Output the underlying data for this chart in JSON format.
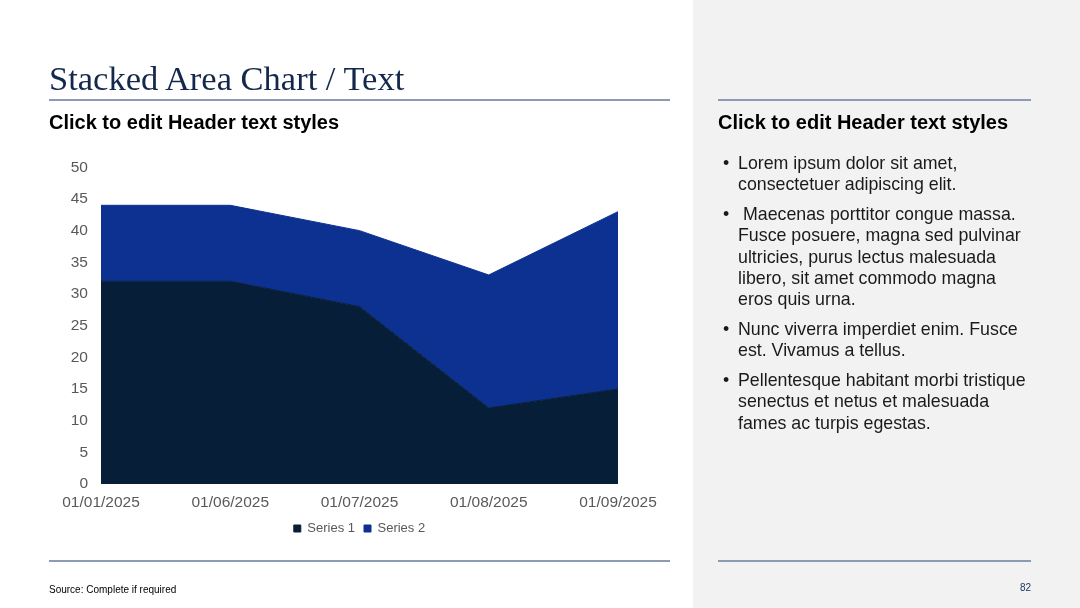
{
  "chart_data": [
    {
      "type": "area",
      "title": "Stacked Area Chart / Text",
      "subtitle": "Click to edit Header text styles",
      "categories": [
        "01/01/2025",
        "01/06/2025",
        "01/07/2025",
        "01/08/2025",
        "01/09/2025"
      ],
      "series": [
        {
          "name": "Series 1",
          "color": "#061e37",
          "values": [
            32,
            32,
            28,
            12,
            15
          ]
        },
        {
          "name": "Series 2",
          "color": "#0c3190",
          "values": [
            12,
            12,
            12,
            21,
            28
          ]
        }
      ],
      "stacked": true,
      "ylim": [
        0,
        50
      ],
      "yticks": [
        0,
        5,
        10,
        15,
        20,
        25,
        30,
        35,
        40,
        45,
        50
      ],
      "grid": false,
      "legend": "bottom",
      "marker": "none",
      "annotations": [
        "Source: Complete if required"
      ]
    },
    {
      "type": "other",
      "title": "Click to edit Header text styles",
      "annotations": [
        "•\tLorem ipsum dolor sit amet, consectetuer adipiscing elit.",
        "•\t Maecenas porttitor congue massa. Fusce posuere, magna sed pulvinar ultricies, purus lectus malesuada libero, sit amet commodo magna eros quis urna.",
        "•\tNunc viverra imperdiet enim. Fusce est. Vivamus a tellus.",
        "•\tPellentesque habitant morbi tristique senectus et netus et malesuada fames ac turpis egestas.",
        "82"
      ]
    }
  ]
}
